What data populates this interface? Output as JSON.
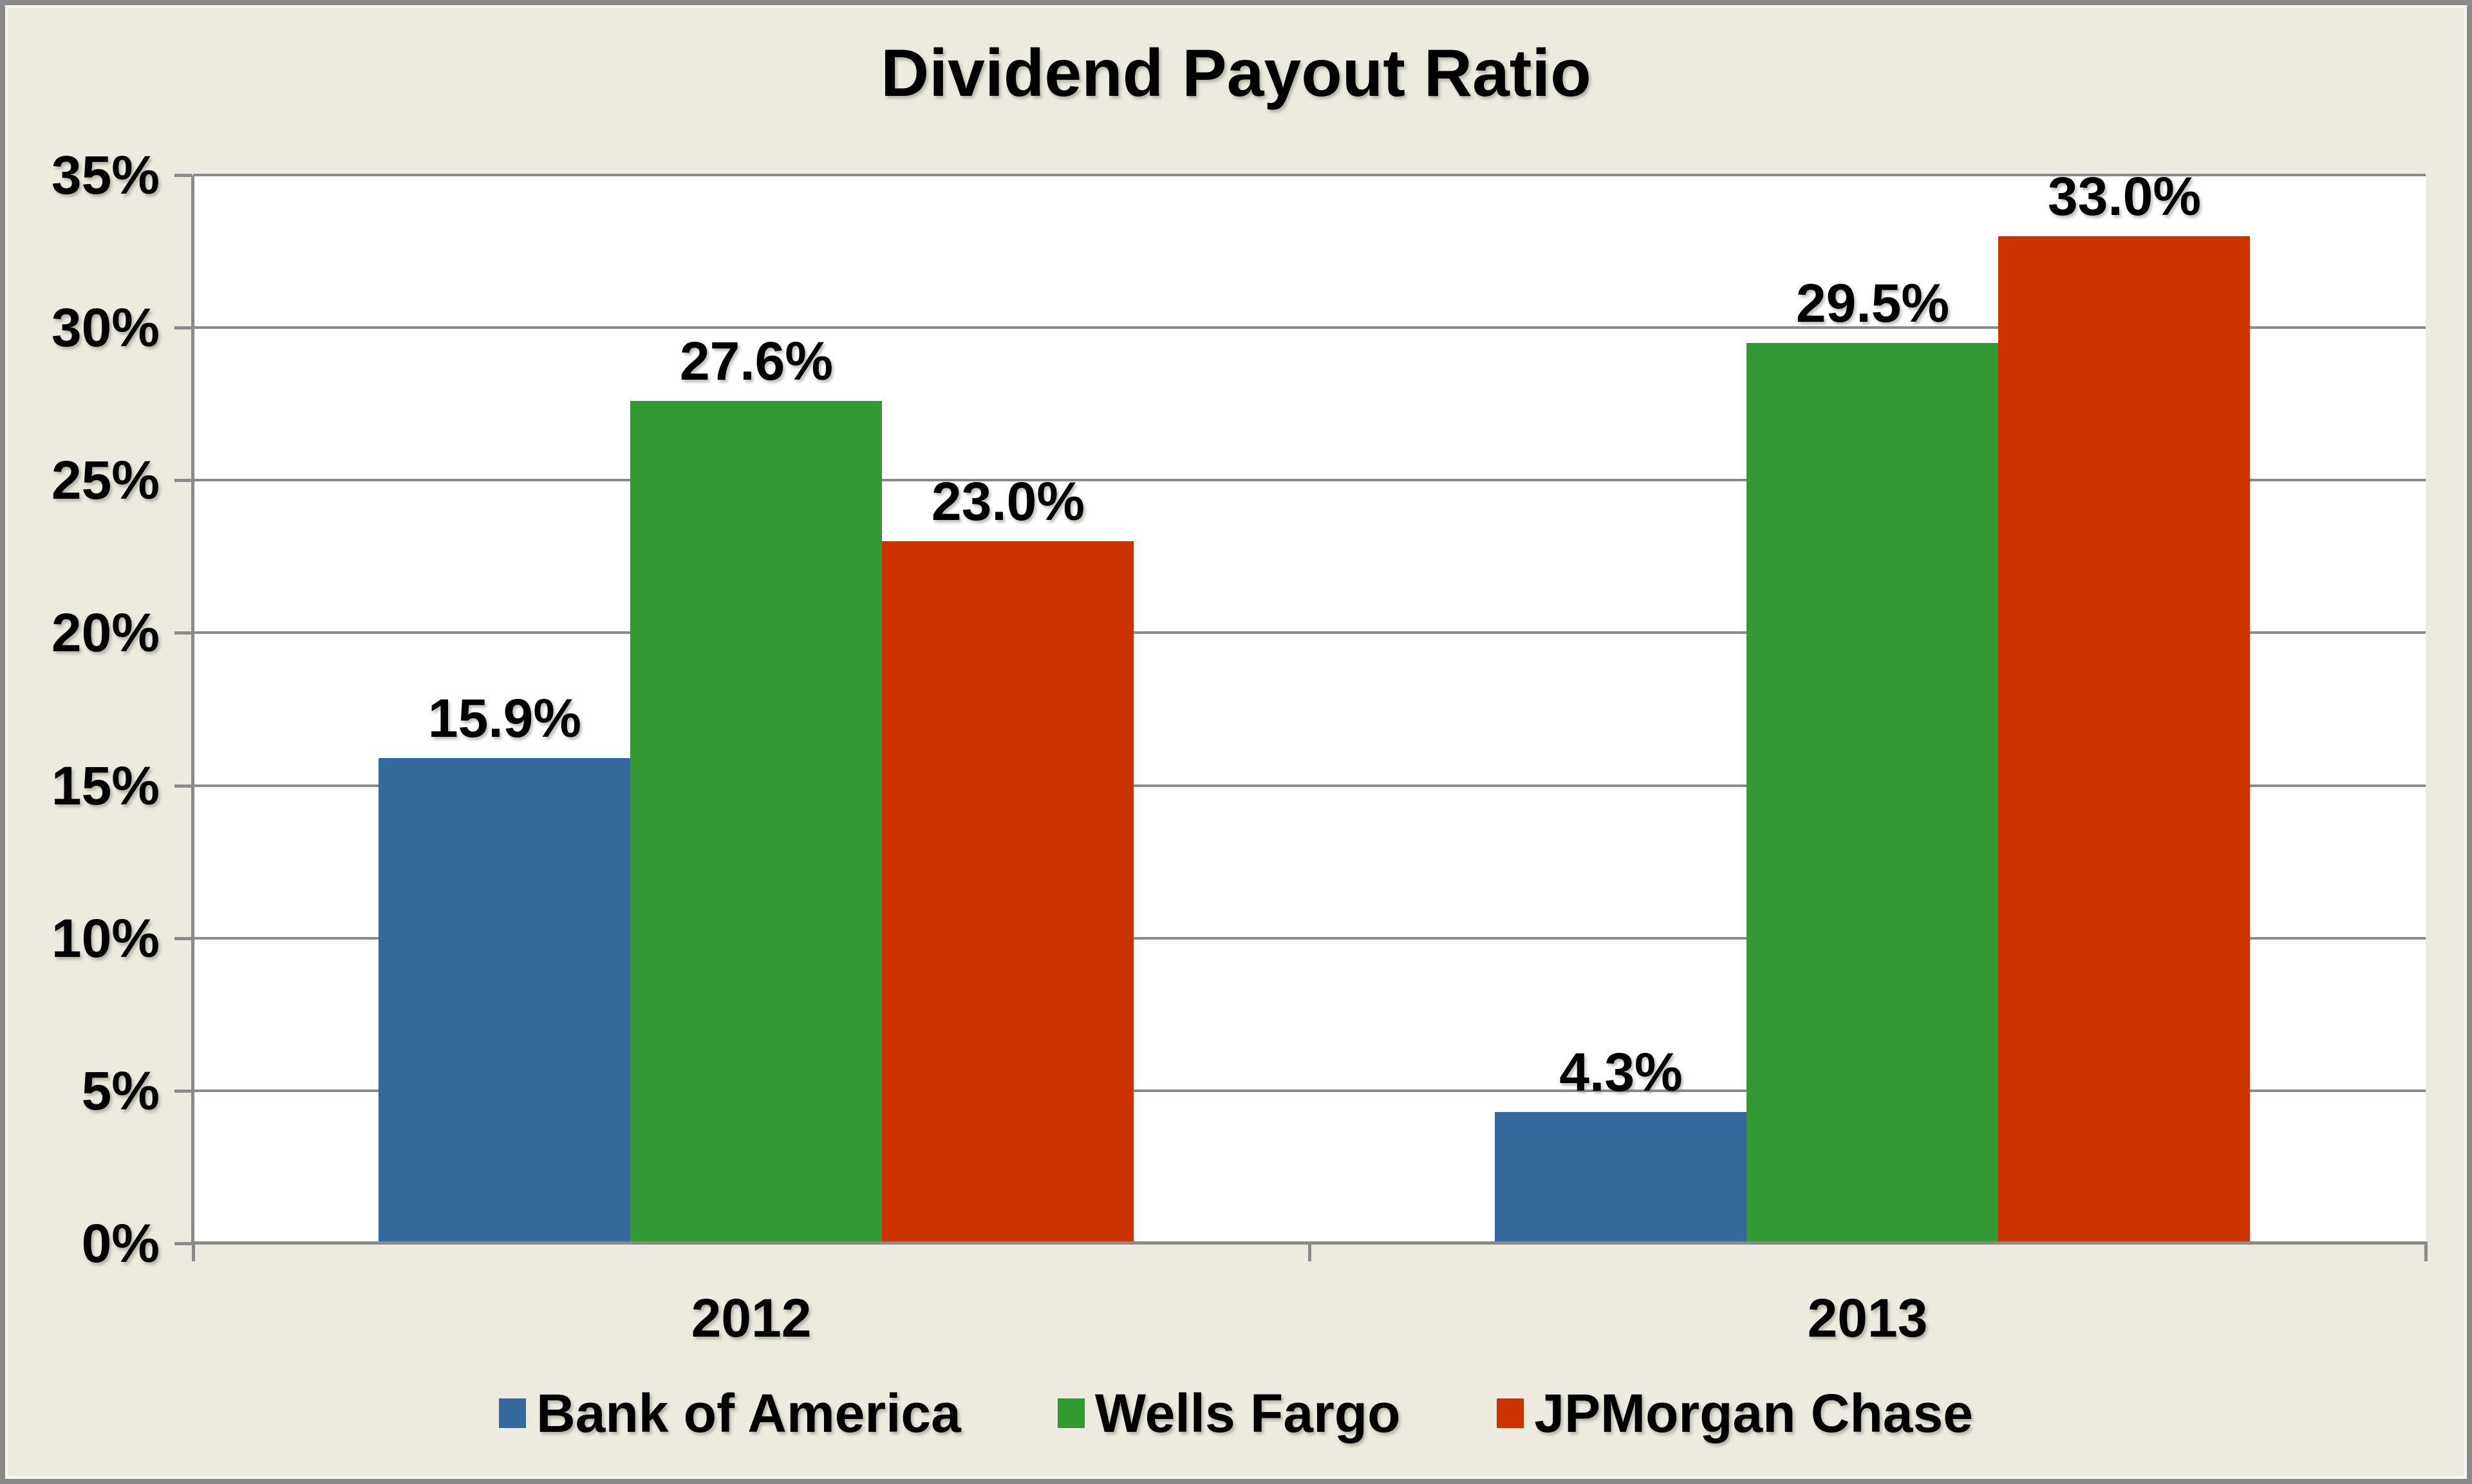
{
  "chart_data": {
    "type": "bar",
    "title": "Dividend Payout Ratio",
    "categories": [
      "2012",
      "2013"
    ],
    "series": [
      {
        "name": "Bank of America",
        "color": "#35699D",
        "values": [
          15.9,
          4.3
        ],
        "labels": [
          "15.9%",
          "4.3%"
        ]
      },
      {
        "name": "Wells Fargo",
        "color": "#339933",
        "values": [
          27.6,
          29.5
        ],
        "labels": [
          "27.6%",
          "29.5%"
        ]
      },
      {
        "name": "JPMorgan Chase",
        "color": "#CC3300",
        "values": [
          23.0,
          33.0
        ],
        "labels": [
          "23.0%",
          "33.0%"
        ]
      }
    ],
    "y_ticks": [
      "35%",
      "30%",
      "25%",
      "20%",
      "15%",
      "10%",
      "5%",
      "0%"
    ],
    "ylim": [
      0,
      35
    ],
    "y_step": 5,
    "grid": true,
    "legend_position": "bottom",
    "style": {
      "background": "#EDEBE0",
      "plot_background": "#FFFFFF",
      "grid_color": "#8A8A8A",
      "frame_color": "#8A8A8A",
      "text_color": "#000000"
    }
  }
}
